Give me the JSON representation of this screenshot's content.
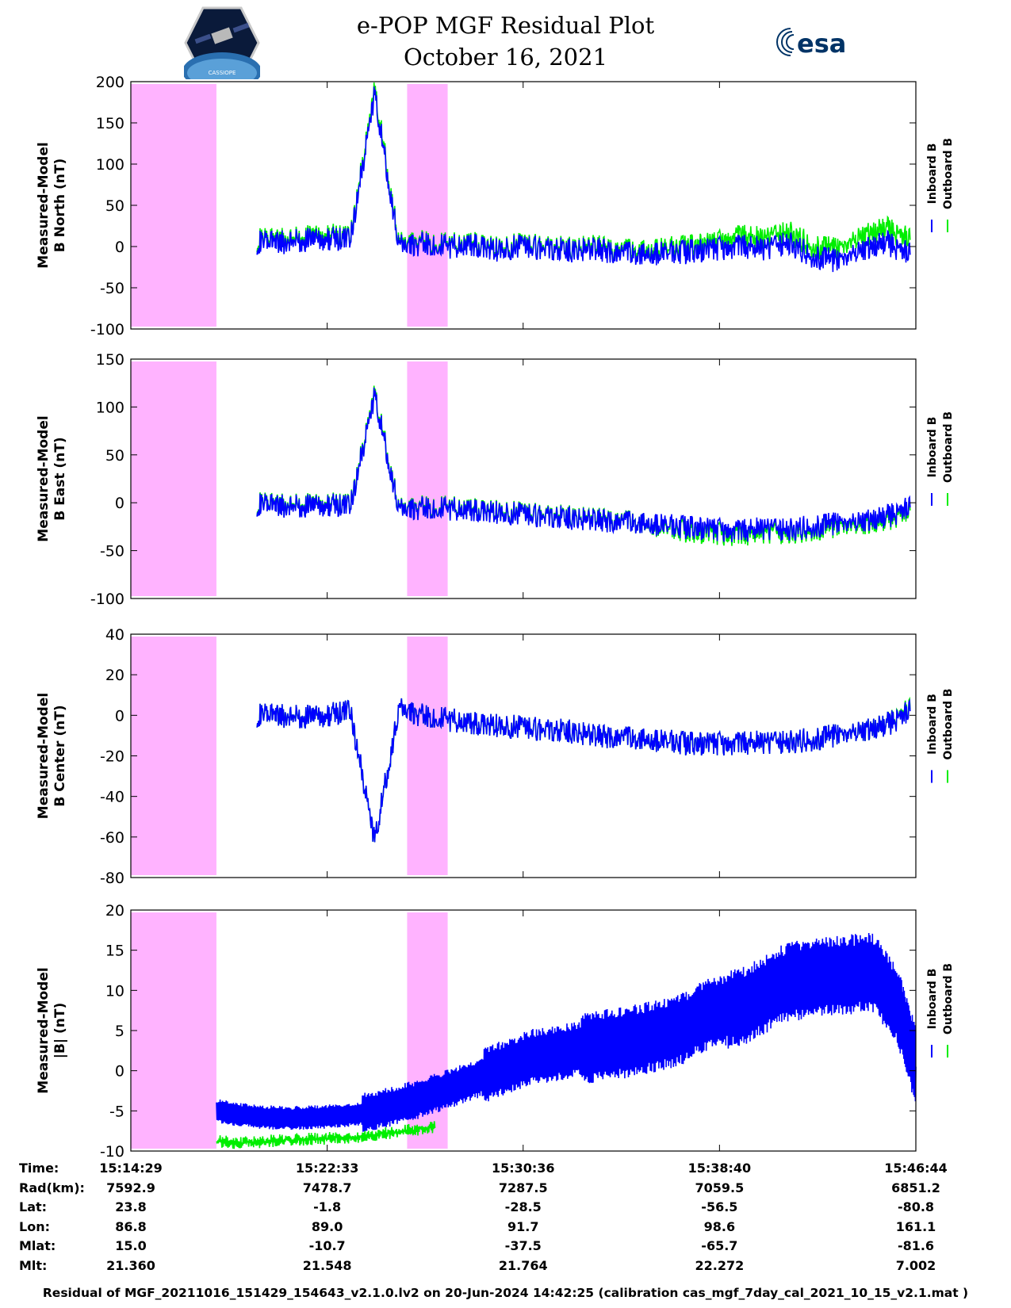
{
  "header": {
    "title_line1": "e-POP MGF Residual Plot",
    "title_line2": "October 16, 2021",
    "logo_left_icon": "cassiope-satellite-logo",
    "logo_left_text": "CASSIOPE",
    "logo_right_icon": "esa-logo",
    "logo_right_text": "esa"
  },
  "colors": {
    "inboard": "#0000ff",
    "outboard": "#00ee00",
    "excluded_region": "#ffb3ff"
  },
  "chart_data": [
    {
      "type": "line",
      "ylabel": [
        "Measured-Model",
        "B North (nT)"
      ],
      "ylim": [
        -100,
        200
      ],
      "yticks": [
        200,
        150,
        100,
        50,
        0,
        -50,
        -100
      ],
      "x_range": [
        "15:14:29",
        "15:46:44"
      ],
      "grid": false,
      "legend": "right",
      "series": [
        {
          "name": "Inboard B",
          "x": [
            "15:19:40",
            "15:20:30",
            "15:21:30",
            "15:22:30",
            "15:23:30",
            "15:24:30",
            "15:25:30",
            "15:26:30",
            "15:27:30",
            "15:28:30",
            "15:29:30",
            "15:30:30",
            "15:31:30",
            "15:32:30",
            "15:33:30",
            "15:34:30",
            "15:35:30",
            "15:36:30",
            "15:37:30",
            "15:38:30",
            "15:39:30",
            "15:40:30",
            "15:41:30",
            "15:42:30",
            "15:43:30",
            "15:44:30",
            "15:45:30",
            "15:46:30"
          ],
          "values": [
            5,
            5,
            7,
            10,
            8,
            185,
            0,
            4,
            0,
            2,
            -4,
            0,
            -2,
            -5,
            -3,
            -8,
            -10,
            -8,
            -6,
            -3,
            0,
            -2,
            5,
            -12,
            -18,
            -5,
            5,
            -10
          ]
        },
        {
          "name": "Outboard B",
          "x": [
            "15:19:40",
            "15:20:30",
            "15:21:30",
            "15:22:30",
            "15:23:30",
            "15:24:30",
            "15:25:30",
            "15:26:30",
            "15:27:30",
            "15:28:30",
            "15:29:30",
            "15:30:30",
            "15:31:30",
            "15:32:30",
            "15:33:30",
            "15:34:30",
            "15:35:30",
            "15:36:30",
            "15:37:30",
            "15:38:30",
            "15:39:30",
            "15:40:30",
            "15:41:30",
            "15:42:30",
            "15:43:30",
            "15:44:30",
            "15:45:30",
            "15:46:30"
          ],
          "values": [
            8,
            8,
            10,
            14,
            10,
            190,
            3,
            6,
            2,
            4,
            -2,
            2,
            0,
            -3,
            0,
            -5,
            -6,
            -3,
            0,
            4,
            12,
            10,
            18,
            0,
            -4,
            12,
            22,
            8
          ]
        }
      ],
      "excluded_intervals": [
        [
          "15:14:29",
          "15:18:00"
        ],
        [
          "15:25:50",
          "15:27:30"
        ]
      ]
    },
    {
      "type": "line",
      "ylabel": [
        "Measured-Model",
        "B East (nT)"
      ],
      "ylim": [
        -100,
        150
      ],
      "yticks": [
        150,
        100,
        50,
        0,
        -50,
        -100
      ],
      "x_range": [
        "15:14:29",
        "15:46:44"
      ],
      "grid": false,
      "legend": "right",
      "series": [
        {
          "name": "Inboard B",
          "x": [
            "15:19:40",
            "15:20:30",
            "15:21:30",
            "15:22:30",
            "15:23:30",
            "15:24:30",
            "15:25:30",
            "15:26:30",
            "15:27:30",
            "15:28:30",
            "15:29:30",
            "15:30:30",
            "15:31:30",
            "15:32:30",
            "15:33:30",
            "15:34:30",
            "15:35:30",
            "15:36:30",
            "15:37:30",
            "15:38:30",
            "15:39:30",
            "15:40:30",
            "15:41:30",
            "15:42:30",
            "15:43:30",
            "15:44:30",
            "15:45:30",
            "15:46:30"
          ],
          "values": [
            -2,
            -3,
            -4,
            -2,
            -4,
            112,
            -8,
            -5,
            -6,
            -8,
            -10,
            -12,
            -14,
            -16,
            -18,
            -20,
            -22,
            -24,
            -26,
            -28,
            -30,
            -26,
            -28,
            -25,
            -22,
            -20,
            -15,
            -5
          ]
        },
        {
          "name": "Outboard B",
          "x": [
            "15:19:40",
            "15:20:30",
            "15:21:30",
            "15:22:30",
            "15:23:30",
            "15:24:30",
            "15:25:30",
            "15:26:30",
            "15:27:30",
            "15:28:30",
            "15:29:30",
            "15:30:30",
            "15:31:30",
            "15:32:30",
            "15:33:30",
            "15:34:30",
            "15:35:30",
            "15:36:30",
            "15:37:30",
            "15:38:30",
            "15:39:30",
            "15:40:30",
            "15:41:30",
            "15:42:30",
            "15:43:30",
            "15:44:30",
            "15:45:30",
            "15:46:30"
          ],
          "values": [
            -1,
            -2,
            -3,
            -1,
            -3,
            114,
            -7,
            -4,
            -5,
            -7,
            -9,
            -11,
            -13,
            -15,
            -17,
            -19,
            -22,
            -26,
            -30,
            -32,
            -34,
            -30,
            -31,
            -28,
            -25,
            -23,
            -18,
            -8
          ]
        }
      ],
      "excluded_intervals": [
        [
          "15:14:29",
          "15:18:00"
        ],
        [
          "15:25:50",
          "15:27:30"
        ]
      ]
    },
    {
      "type": "line",
      "ylabel": [
        "Measured-Model",
        "B Center (nT)"
      ],
      "ylim": [
        -80,
        40
      ],
      "yticks": [
        40,
        20,
        0,
        -20,
        -40,
        -60,
        -80
      ],
      "x_range": [
        "15:14:29",
        "15:46:44"
      ],
      "grid": false,
      "legend": "right",
      "series": [
        {
          "name": "Inboard B",
          "x": [
            "15:19:40",
            "15:20:30",
            "15:21:30",
            "15:22:30",
            "15:23:30",
            "15:24:30",
            "15:25:30",
            "15:26:30",
            "15:27:30",
            "15:28:30",
            "15:29:30",
            "15:30:30",
            "15:31:30",
            "15:32:30",
            "15:33:30",
            "15:34:30",
            "15:35:30",
            "15:36:30",
            "15:37:30",
            "15:38:30",
            "15:39:30",
            "15:40:30",
            "15:41:30",
            "15:42:30",
            "15:43:30",
            "15:44:30",
            "15:45:30",
            "15:46:30"
          ],
          "values": [
            0,
            0,
            -1,
            0,
            2,
            -62,
            3,
            0,
            -2,
            -4,
            -5,
            -6,
            -7,
            -8,
            -10,
            -11,
            -12,
            -13,
            -14,
            -14,
            -14,
            -13,
            -13,
            -12,
            -10,
            -8,
            -5,
            2
          ]
        },
        {
          "name": "Outboard B",
          "x": [
            "15:19:40",
            "15:20:30",
            "15:21:30",
            "15:22:30",
            "15:23:30",
            "15:24:30",
            "15:25:30",
            "15:26:30",
            "15:27:30",
            "15:28:30",
            "15:29:30",
            "15:30:30",
            "15:31:30",
            "15:32:30",
            "15:33:30",
            "15:34:30",
            "15:35:30",
            "15:36:30",
            "15:37:30",
            "15:38:30",
            "15:39:30",
            "15:40:30",
            "15:41:30",
            "15:42:30",
            "15:43:30",
            "15:44:30",
            "15:45:30",
            "15:46:30"
          ],
          "values": [
            0,
            0,
            -1,
            0,
            2,
            -62,
            3,
            0,
            -2,
            -4,
            -5,
            -6,
            -7,
            -8,
            -10,
            -11,
            -12,
            -13,
            -14,
            -14,
            -14,
            -13,
            -13,
            -12,
            -10,
            -8,
            -5,
            3
          ]
        }
      ],
      "excluded_intervals": [
        [
          "15:14:29",
          "15:18:00"
        ],
        [
          "15:25:50",
          "15:27:30"
        ]
      ]
    },
    {
      "type": "line",
      "ylabel": [
        "Measured-Model",
        "|B| (nT)"
      ],
      "ylim": [
        -10,
        20
      ],
      "yticks": [
        20,
        15,
        10,
        5,
        0,
        -5,
        -10
      ],
      "x_range": [
        "15:14:29",
        "15:46:44"
      ],
      "grid": false,
      "legend": "right",
      "series": [
        {
          "name": "Inboard B",
          "x": [
            "15:18:00",
            "15:19:00",
            "15:20:00",
            "15:21:00",
            "15:22:00",
            "15:23:00",
            "15:24:00",
            "15:25:00",
            "15:26:00",
            "15:27:00",
            "15:28:00",
            "15:29:00",
            "15:30:00",
            "15:31:00",
            "15:32:00",
            "15:33:00",
            "15:34:00",
            "15:35:00",
            "15:36:00",
            "15:37:00",
            "15:38:00",
            "15:39:00",
            "15:40:00",
            "15:41:00",
            "15:42:00",
            "15:43:00",
            "15:44:00",
            "15:45:00",
            "15:46:00",
            "15:46:44"
          ],
          "values": [
            -5,
            -5.5,
            -5.8,
            -5.9,
            -5.8,
            -5.6,
            -5.3,
            -4.6,
            -3.8,
            -2.8,
            -1.8,
            -0.6,
            0.6,
            1.7,
            2.2,
            2.8,
            3.2,
            3.6,
            4.3,
            5.0,
            6.8,
            7.5,
            8.5,
            10.5,
            11.3,
            11.8,
            12.0,
            12.2,
            8.0,
            0.5
          ]
        },
        {
          "name": "Outboard B",
          "x": [
            "15:18:00",
            "15:19:00",
            "15:20:00",
            "15:21:00",
            "15:22:00",
            "15:23:00",
            "15:24:00",
            "15:25:00",
            "15:26:00",
            "15:27:00"
          ],
          "values": [
            -8.8,
            -9.0,
            -8.8,
            -8.6,
            -8.5,
            -8.3,
            -8.2,
            -7.8,
            -7.4,
            -7.0
          ]
        }
      ],
      "band_halfwidth": [
        1.5,
        2.5,
        3.5,
        4.5,
        5.0
      ],
      "excluded_intervals": [
        [
          "15:14:29",
          "15:18:00"
        ],
        [
          "15:25:50",
          "15:27:30"
        ]
      ]
    }
  ],
  "x_ticks": [
    "15:14:29",
    "15:22:33",
    "15:30:36",
    "15:38:40",
    "15:46:44"
  ],
  "legend": {
    "inboard_label": "Inboard B",
    "outboard_label": "Outboard B"
  },
  "ephemeris": {
    "rows": [
      {
        "label": "Time:",
        "values": [
          "15:14:29",
          "15:22:33",
          "15:30:36",
          "15:38:40",
          "15:46:44"
        ]
      },
      {
        "label": "Rad(km):",
        "values": [
          "7592.9",
          "7478.7",
          "7287.5",
          "7059.5",
          "6851.2"
        ]
      },
      {
        "label": "Lat:",
        "values": [
          "23.8",
          "-1.8",
          "-28.5",
          "-56.5",
          "-80.8"
        ]
      },
      {
        "label": "Lon:",
        "values": [
          "86.8",
          "89.0",
          "91.7",
          "98.6",
          "161.1"
        ]
      },
      {
        "label": "Mlat:",
        "values": [
          "15.0",
          "-10.7",
          "-37.5",
          "-65.7",
          "-81.6"
        ]
      },
      {
        "label": "Mlt:",
        "values": [
          "21.360",
          "21.548",
          "21.764",
          "22.272",
          "7.002"
        ]
      }
    ]
  },
  "footer": "Residual of MGF_20211016_151429_154643_v2.1.0.lv2 on 20-Jun-2024 14:42:25 (calibration cas_mgf_7day_cal_2021_10_15_v2.1.mat )"
}
